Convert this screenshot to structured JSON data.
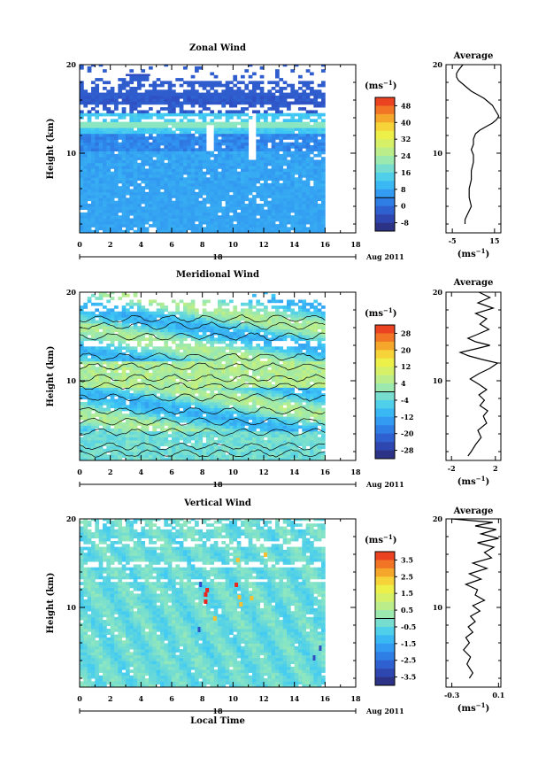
{
  "chart_data": [
    {
      "type": "heatmap",
      "title": "Zonal Wind",
      "ylabel": "Height (km)",
      "xlim": [
        0,
        18
      ],
      "ylim": [
        1,
        20
      ],
      "x_ticks": [
        "0",
        "2",
        "4",
        "6",
        "8",
        "10",
        "12",
        "14",
        "16",
        "18"
      ],
      "y_ticks": [
        "20",
        "10"
      ],
      "day_label": "18",
      "month_label": "Aug 2011",
      "colorbar": {
        "unit_main": "(ms",
        "unit_exp": "−1",
        "unit_close": ")",
        "ticks": [
          "48",
          "40",
          "32",
          "24",
          "16",
          "8",
          "0",
          "-8"
        ],
        "range": [
          -8,
          52
        ]
      },
      "average_profile": {
        "title": "Average",
        "xlabel_main": "(ms",
        "xlabel_exp": "−1",
        "xlabel_close": ")",
        "x_ticks": [
          "-5",
          "15"
        ],
        "y_ticks": [
          "20",
          "10"
        ],
        "xlim": [
          -8,
          18
        ],
        "x": [
          0,
          -1,
          -2,
          -3,
          -3,
          -2,
          0,
          2,
          4,
          7,
          10,
          12,
          14,
          15,
          16,
          17,
          16,
          14,
          11,
          8,
          6,
          5,
          5,
          4,
          5,
          5,
          4,
          4,
          3,
          3,
          4,
          3,
          2,
          1,
          1
        ],
        "y": [
          20,
          19.7,
          19.4,
          19,
          18.6,
          18.2,
          17.8,
          17.4,
          17,
          16.6,
          16.2,
          15.8,
          15.4,
          15,
          14.6,
          14.2,
          13.8,
          13.4,
          13,
          12.6,
          12.2,
          11.6,
          11,
          10.4,
          9.8,
          9,
          8,
          7,
          6,
          5,
          4,
          3.5,
          3,
          2.5,
          2
        ]
      }
    },
    {
      "type": "heatmap",
      "title": "Meridional Wind",
      "ylabel": "Height (km)",
      "xlim": [
        0,
        18
      ],
      "ylim": [
        1,
        20
      ],
      "x_ticks": [
        "0",
        "2",
        "4",
        "6",
        "8",
        "10",
        "12",
        "14",
        "16",
        "18"
      ],
      "y_ticks": [
        "20",
        "10"
      ],
      "day_label": "18",
      "month_label": "Aug 2011",
      "colorbar": {
        "unit_main": "(ms",
        "unit_exp": "−1",
        "unit_close": ")",
        "ticks": [
          "28",
          "20",
          "12",
          "4",
          "-4",
          "-12",
          "-20",
          "-28"
        ],
        "range": [
          -32,
          32
        ]
      },
      "average_profile": {
        "title": "Average",
        "xlabel_main": "(ms",
        "xlabel_exp": "−1",
        "xlabel_close": ")",
        "x_ticks": [
          "-2",
          "2"
        ],
        "y_ticks": [
          "20",
          "10"
        ],
        "xlim": [
          -2.5,
          2.5
        ],
        "x": [
          0.5,
          1.5,
          0.4,
          1.8,
          0.2,
          1.2,
          0.6,
          1.4,
          0.3,
          -0.5,
          0.2,
          1.5,
          0.2,
          -1.2,
          -0.4,
          0.8,
          2.2,
          1.5,
          0.5,
          -0.3,
          0.5,
          1.2,
          0.5,
          1.0,
          0.6,
          1.3,
          0.9,
          1.2,
          0.4,
          0.7,
          0.2,
          -0.2,
          -0.5
        ],
        "y": [
          20,
          19.4,
          18.8,
          18.2,
          17.6,
          17,
          16.4,
          15.8,
          15.2,
          14.8,
          14.4,
          14,
          13.6,
          13.2,
          12.8,
          12.4,
          12,
          11.4,
          10.8,
          10.2,
          9.6,
          9,
          8.4,
          7.8,
          7.2,
          6.6,
          6,
          5.2,
          4.4,
          3.6,
          2.8,
          2,
          1.5
        ]
      }
    },
    {
      "type": "heatmap",
      "title": "Vertical Wind",
      "ylabel": "Height (km)",
      "xlabel": "Local Time",
      "xlim": [
        0,
        18
      ],
      "ylim": [
        1,
        20
      ],
      "x_ticks": [
        "0",
        "2",
        "4",
        "6",
        "8",
        "10",
        "12",
        "14",
        "16",
        "18"
      ],
      "y_ticks": [
        "20",
        "10"
      ],
      "day_label": "18",
      "month_label": "Aug 2011",
      "colorbar": {
        "unit_main": "(ms",
        "unit_exp": "−1",
        "unit_close": ")",
        "ticks": [
          "3.5",
          "2.5",
          "1.5",
          "0.5",
          "-0.5",
          "-1.5",
          "-2.5",
          "-3.5"
        ],
        "range": [
          -4,
          4
        ]
      },
      "average_profile": {
        "title": "Average",
        "xlabel_main": "(ms",
        "xlabel_exp": "−1",
        "xlabel_close": ")",
        "x_ticks": [
          "-0.3",
          "0.1"
        ],
        "y_ticks": [
          "20",
          "10"
        ],
        "xlim": [
          -0.35,
          0.12
        ],
        "x": [
          -0.3,
          0.05,
          -0.1,
          0.08,
          -0.05,
          0.1,
          -0.08,
          0.06,
          -0.02,
          0.04,
          -0.12,
          0.0,
          -0.15,
          -0.05,
          -0.18,
          -0.08,
          -0.1,
          -0.02,
          -0.12,
          -0.06,
          -0.14,
          -0.1,
          -0.16,
          -0.12,
          -0.18,
          -0.15,
          -0.2,
          -0.14,
          -0.17,
          -0.12,
          -0.15
        ],
        "y": [
          20,
          19.6,
          19.2,
          18.8,
          18.3,
          17.8,
          17.3,
          16.8,
          16.2,
          15.6,
          15,
          14.4,
          13.8,
          13.2,
          12.6,
          12,
          11.4,
          10.8,
          10.2,
          9.6,
          9,
          8.4,
          7.8,
          7.2,
          6.6,
          6,
          5.2,
          4.4,
          3.6,
          2.6,
          2
        ]
      }
    }
  ]
}
